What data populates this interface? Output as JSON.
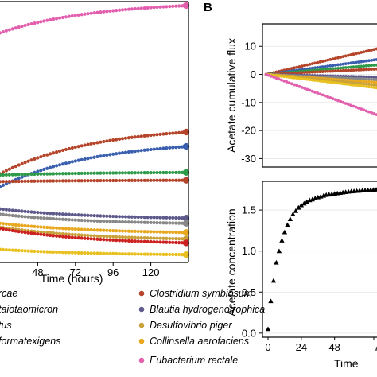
{
  "panel_b_label": "B",
  "legend": [
    {
      "text": "rcae",
      "color": "#777777"
    },
    {
      "text": "taiotaomicron",
      "color": "#777777"
    },
    {
      "text": "tus",
      "color": "#777777"
    },
    {
      "text": "formatexigens",
      "color": "#777777"
    },
    {
      "text": "Clostridium symbiosum",
      "color": "#b5452a"
    },
    {
      "text": "Blautia hydrogenotrophica",
      "color": "#5f5a8c"
    },
    {
      "text": "Desulfovibrio piger",
      "color": "#c9a13a"
    },
    {
      "text": "Collinsella aerofaciens",
      "color": "#e8a820"
    },
    {
      "text": "Eubacterium rectale",
      "color": "#e25fae"
    }
  ],
  "chart_data": [
    {
      "type": "line",
      "panel": "A",
      "xlabel": "Time (hours)",
      "ylabel": "",
      "xlim": [
        24,
        144
      ],
      "ylim": [
        0,
        1
      ],
      "xticks": [
        48,
        72,
        96,
        120
      ],
      "series": [
        {
          "color": "#e25fae",
          "start": 0.88,
          "end": 0.985
        },
        {
          "color": "#b5452a",
          "start": 0.34,
          "end": 0.5
        },
        {
          "color": "#3a5fae",
          "start": 0.29,
          "end": 0.445
        },
        {
          "color": "#2e9a4a",
          "start": 0.335,
          "end": 0.345
        },
        {
          "color": "#b5452a",
          "start": 0.31,
          "end": 0.315
        },
        {
          "color": "#5f5a8c",
          "start": 0.205,
          "end": 0.17
        },
        {
          "color": "#888888",
          "start": 0.185,
          "end": 0.15
        },
        {
          "color": "#e8a820",
          "start": 0.15,
          "end": 0.115
        },
        {
          "color": "#c9a13a",
          "start": 0.135,
          "end": 0.09
        },
        {
          "color": "#cc2222",
          "start": 0.13,
          "end": 0.075
        },
        {
          "color": "#e8c020",
          "start": 0.05,
          "end": 0.03
        }
      ]
    },
    {
      "type": "line",
      "panel": "B-top",
      "ylabel": "Acetate cumulative flux",
      "xlim": [
        -3,
        96
      ],
      "ylim": [
        -33,
        18
      ],
      "yticks": [
        10,
        0,
        -10,
        -20,
        -30
      ],
      "series": [
        {
          "color": "#b5452a",
          "x": [
            0,
            96
          ],
          "y": [
            0,
            9.5
          ]
        },
        {
          "color": "#3a5fae",
          "x": [
            0,
            96
          ],
          "y": [
            0,
            5.5
          ]
        },
        {
          "color": "#2e9a4a",
          "x": [
            0,
            96
          ],
          "y": [
            0,
            3.5
          ]
        },
        {
          "color": "#b5452a",
          "x": [
            0,
            96
          ],
          "y": [
            0,
            2.0
          ]
        },
        {
          "color": "#5f5a8c",
          "x": [
            0,
            96
          ],
          "y": [
            0,
            -1.0
          ]
        },
        {
          "color": "#888888",
          "x": [
            0,
            96
          ],
          "y": [
            0,
            -2.0
          ]
        },
        {
          "color": "#e8a820",
          "x": [
            0,
            96
          ],
          "y": [
            0,
            -3.0
          ]
        },
        {
          "color": "#c9a13a",
          "x": [
            0,
            96
          ],
          "y": [
            0,
            -4.0
          ]
        },
        {
          "color": "#e8c020",
          "x": [
            0,
            96
          ],
          "y": [
            0,
            -5.0
          ]
        },
        {
          "color": "#e25fae",
          "x": [
            0,
            96
          ],
          "y": [
            0,
            -15.0
          ]
        }
      ]
    },
    {
      "type": "scatter",
      "panel": "B-bottom",
      "xlabel": "Time",
      "ylabel": "Acetate concentration",
      "xlim": [
        -4,
        82
      ],
      "ylim": [
        -0.05,
        1.85
      ],
      "xticks": [
        0,
        24,
        48
      ],
      "xtick_partial": "7",
      "yticks": [
        0.0,
        0.5,
        1.0,
        1.5
      ],
      "x": [
        0,
        2,
        4,
        6,
        8,
        10,
        12,
        14,
        16,
        18,
        20,
        22,
        24,
        26,
        28,
        30,
        32,
        34,
        36,
        38,
        40,
        42,
        44,
        46,
        48,
        50,
        52,
        54,
        56,
        58,
        60,
        62,
        64,
        66,
        68,
        70,
        72,
        74,
        76,
        78
      ],
      "y": [
        0.05,
        0.39,
        0.64,
        0.86,
        1.0,
        1.13,
        1.23,
        1.32,
        1.39,
        1.45,
        1.49,
        1.53,
        1.56,
        1.58,
        1.6,
        1.62,
        1.63,
        1.645,
        1.655,
        1.665,
        1.675,
        1.685,
        1.69,
        1.695,
        1.7,
        1.705,
        1.71,
        1.715,
        1.72,
        1.725,
        1.728,
        1.731,
        1.734,
        1.737,
        1.74,
        1.742,
        1.744,
        1.746,
        1.748,
        1.75
      ]
    }
  ]
}
